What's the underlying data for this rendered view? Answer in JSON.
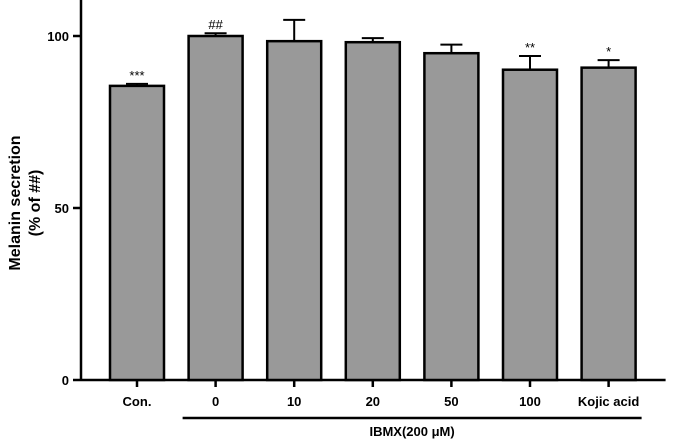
{
  "chart_data": {
    "type": "bar",
    "categories": [
      "Con.",
      "0",
      "10",
      "20",
      "50",
      "100",
      "Kojic acid"
    ],
    "values": [
      85.5,
      100,
      98.5,
      98.2,
      95,
      90.2,
      90.8
    ],
    "errors": [
      0.6,
      0.8,
      6.2,
      1.2,
      2.5,
      4.0,
      2.2
    ],
    "significance": [
      "***",
      "##",
      "",
      "",
      "",
      "**",
      "*"
    ],
    "ylabel_line1": "Melanin secretion",
    "ylabel_line2": "(% of ##)",
    "yticks": [
      "0",
      "50",
      "100"
    ],
    "ylim": [
      0,
      110
    ],
    "group_label": "IBMX(200 μM)",
    "group_range": [
      "0",
      "Kojic acid"
    ],
    "bar_color": "#999999",
    "grid": false,
    "legend": "none"
  }
}
